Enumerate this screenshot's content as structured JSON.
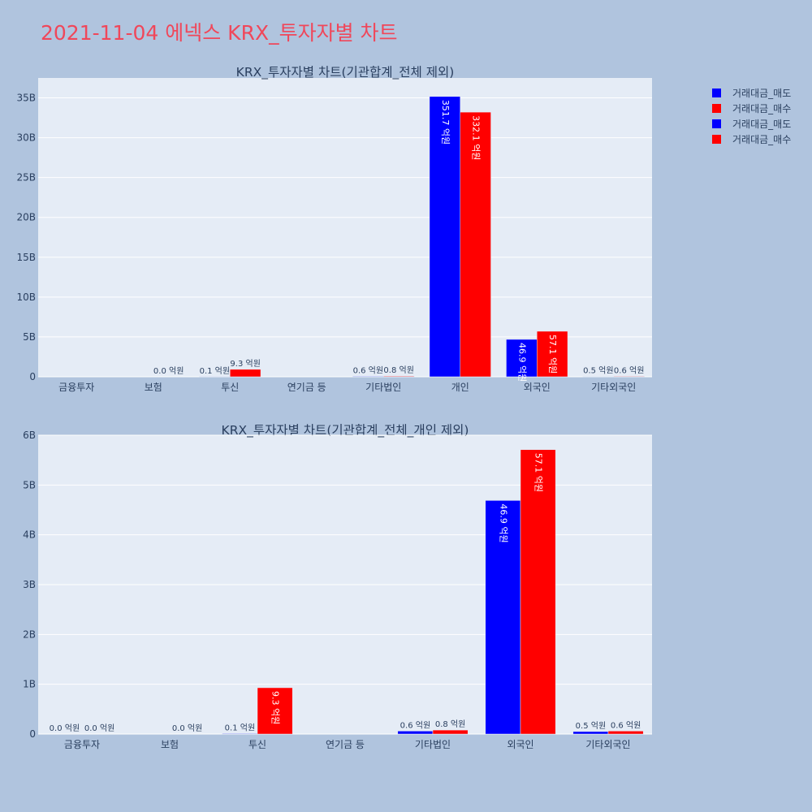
{
  "page": {
    "title": "2021-11-04 에넥스 KRX_투자자별 차트",
    "background": "#b0c4de",
    "plot_background": "#e5ecf6",
    "title_color": "#f0475a"
  },
  "legend": {
    "placement": "top-right",
    "items": [
      {
        "label": "거래대금_매도",
        "color": "#0000ff"
      },
      {
        "label": "거래대금_매수",
        "color": "#ff0000"
      },
      {
        "label": "거래대금_매도",
        "color": "#0000ff"
      },
      {
        "label": "거래대금_매수",
        "color": "#ff0000"
      }
    ]
  },
  "chart_data": [
    {
      "type": "bar",
      "title": "KRX_투자자별 차트(기관합계_전체 제외)",
      "categories": [
        "금융투자",
        "보험",
        "투신",
        "연기금 등",
        "기타법인",
        "개인",
        "외국인",
        "기타외국인"
      ],
      "series": [
        {
          "name": "거래대금_매도",
          "color": "#0000ff",
          "values": [
            0,
            0,
            10000000,
            0,
            60000000,
            35170000000,
            4690000000,
            50000000
          ],
          "labels": [
            "",
            "",
            "0.1 억원",
            "",
            "0.6 억원",
            "351.7 억원",
            "46.9 억원",
            "0.5 억원"
          ]
        },
        {
          "name": "거래대금_매수",
          "color": "#ff0000",
          "values": [
            0,
            0,
            930000000,
            0,
            80000000,
            33210000000,
            5710000000,
            60000000
          ],
          "labels": [
            "",
            "0.0 억원",
            "9.3 억원",
            "",
            "0.8 억원",
            "332.1 억원",
            "57.1 억원",
            "0.6 억원"
          ]
        }
      ],
      "ylim": [
        0,
        37500000000
      ],
      "yticks": [
        0,
        5000000000,
        10000000000,
        15000000000,
        20000000000,
        25000000000,
        30000000000,
        35000000000
      ],
      "ytick_labels": [
        "0",
        "5B",
        "10B",
        "15B",
        "20B",
        "25B",
        "30B",
        "35B"
      ],
      "grid": true
    },
    {
      "type": "bar",
      "title": "KRX_투자자별 차트(기관합계_전체_개인 제외)",
      "categories": [
        "금융투자",
        "보험",
        "투신",
        "연기금 등",
        "기타법인",
        "외국인",
        "기타외국인"
      ],
      "series": [
        {
          "name": "거래대금_매도",
          "color": "#0000ff",
          "values": [
            0,
            0,
            10000000,
            0,
            60000000,
            4690000000,
            50000000
          ],
          "labels": [
            "0.0 억원",
            "",
            "0.1 억원",
            "",
            "0.6 억원",
            "46.9 억원",
            "0.5 억원"
          ]
        },
        {
          "name": "거래대금_매수",
          "color": "#ff0000",
          "values": [
            0,
            0,
            930000000,
            0,
            80000000,
            5710000000,
            60000000
          ],
          "labels": [
            "0.0 억원",
            "0.0 억원",
            "9.3 억원",
            "",
            "0.8 억원",
            "57.1 억원",
            "0.6 억원"
          ]
        }
      ],
      "ylim": [
        0,
        6000000000
      ],
      "yticks": [
        0,
        1000000000,
        2000000000,
        3000000000,
        4000000000,
        5000000000,
        6000000000
      ],
      "ytick_labels": [
        "0",
        "1B",
        "2B",
        "3B",
        "4B",
        "5B",
        "6B"
      ],
      "grid": true
    }
  ]
}
